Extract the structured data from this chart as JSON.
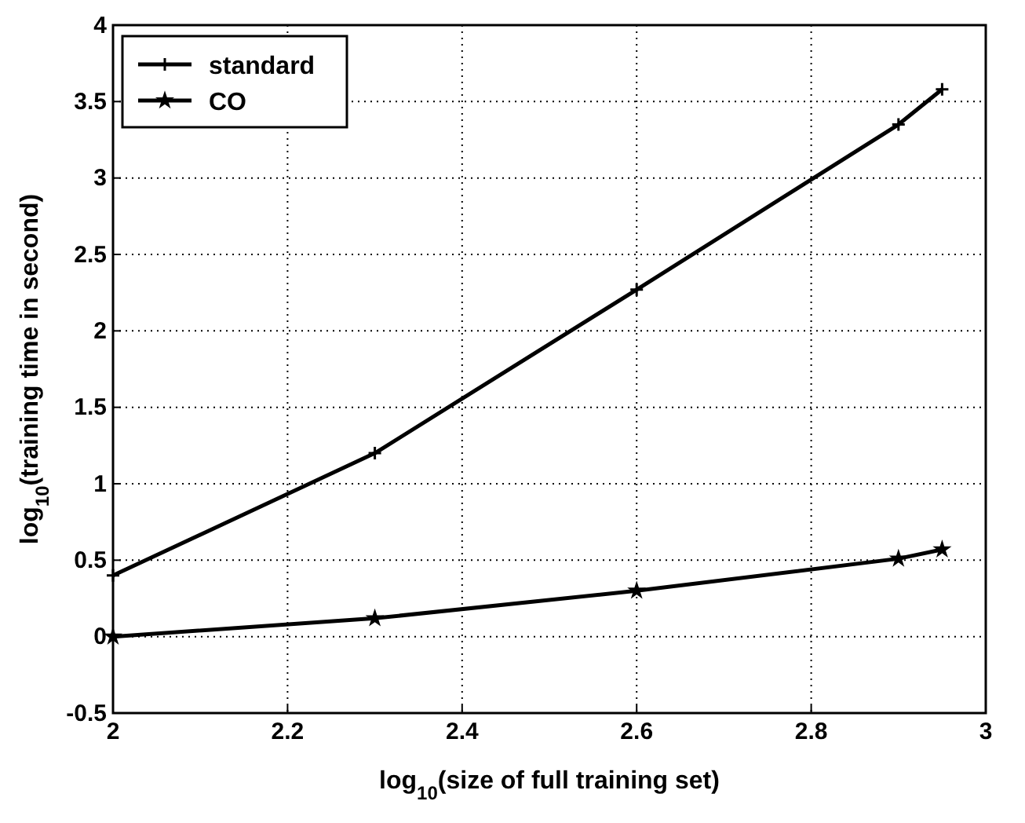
{
  "chart_data": {
    "type": "line",
    "xlabel": "log$_{10}$(size of full training set)",
    "ylabel": "log$_{10}$(training time in second)",
    "xlim": [
      2,
      3
    ],
    "xticks": [
      2,
      2.2,
      2.4,
      2.6,
      2.8,
      3
    ],
    "ylim": [
      -0.5,
      4
    ],
    "yticks": [
      -0.5,
      0,
      0.5,
      1,
      1.5,
      2,
      2.5,
      3,
      3.5,
      4
    ],
    "grid": true,
    "legend": "top left",
    "line_style": "solid",
    "series": [
      {
        "name": "standard",
        "color": "#000000",
        "marker": "cross",
        "x": [
          2,
          2.3,
          2.6,
          2.9,
          2.95
        ],
        "values": [
          0.4,
          1.2,
          2.27,
          3.35,
          3.58
        ]
      },
      {
        "name": "CO",
        "color": "#000000",
        "marker": "star",
        "x": [
          2,
          2.3,
          2.6,
          2.9,
          2.95
        ],
        "values": [
          0,
          0.12,
          0.3,
          0.51,
          0.57
        ]
      }
    ]
  }
}
